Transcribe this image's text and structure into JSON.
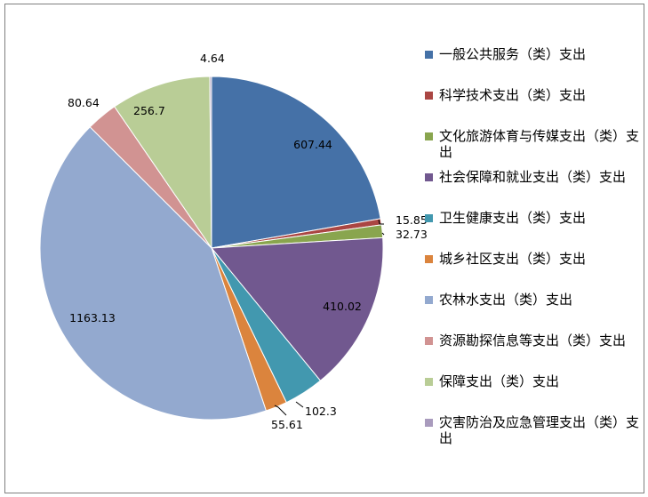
{
  "chart_data": {
    "type": "pie",
    "categories": [
      "一般公共服务（类）支出",
      "科学技术支出（类）支出",
      "文化旅游体育与传媒支出（类）支出",
      "社会保障和就业支出（类）支出",
      "卫生健康支出（类）支出",
      "城乡社区支出（类）支出",
      "农林水支出（类）支出",
      "资源勘探信息等支出（类）支出",
      "保障支出（类）支出",
      "灾害防治及应急管理支出（类）支出"
    ],
    "values": [
      607.44,
      15.85,
      32.73,
      410.02,
      102.3,
      55.61,
      1163.13,
      80.64,
      256.7,
      4.64
    ],
    "labels": [
      "607.44",
      "15.85",
      "32.73",
      "410.02",
      "102.3",
      "55.61",
      "1163.13",
      "80.64",
      "256.7",
      "4.64"
    ],
    "colors": [
      "#4571a7",
      "#aa4643",
      "#89a54e",
      "#71588f",
      "#4298af",
      "#db843d",
      "#93a9cf",
      "#d19392",
      "#b9cd96",
      "#a99bbd"
    ],
    "legend_position": "right",
    "start_angle": "12 o'clock, clockwise"
  }
}
